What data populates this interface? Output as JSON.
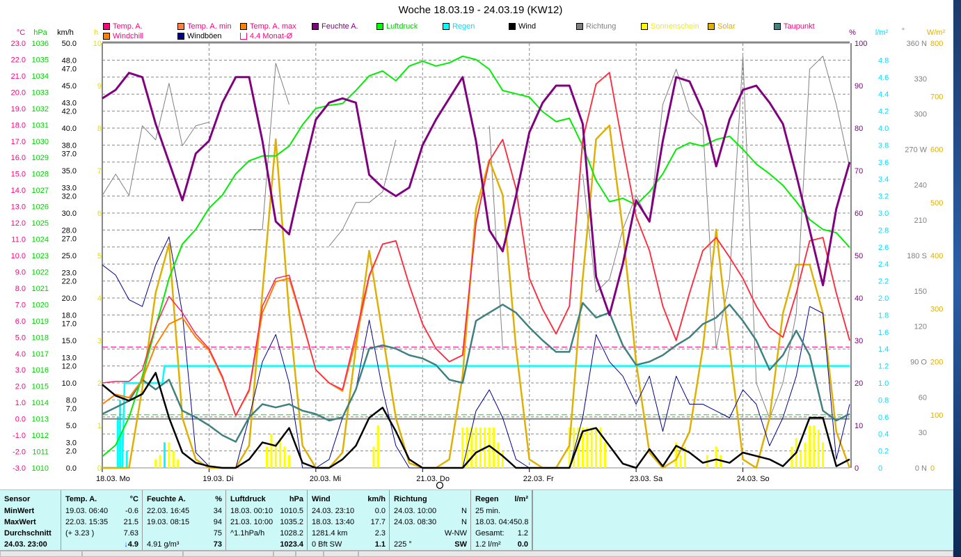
{
  "title": "Woche 18.03.19 - 24.03.19 (KW12)",
  "legend": [
    {
      "label": "Temp. A.",
      "swatch": "#ff0080",
      "text": "#ff0080"
    },
    {
      "label": "Temp. A. min",
      "swatch": "#ff8040",
      "text": "#ff0080"
    },
    {
      "label": "Temp. A. max",
      "swatch": "#ff8000",
      "text": "#ff0080"
    },
    {
      "label": "Feuchte A.",
      "swatch": "#800080",
      "text": "#800080"
    },
    {
      "label": "Luftdruck",
      "swatch": "#00ff00",
      "text": "#00d000"
    },
    {
      "label": "Regen",
      "swatch": "#00ffff",
      "text": "#00e0ff"
    },
    {
      "label": "Wind",
      "swatch": "#000000",
      "text": "#000000"
    },
    {
      "label": "Richtung",
      "swatch": "#808080",
      "text": "#808080"
    },
    {
      "label": "Sonnenschein",
      "swatch": "#ffff00",
      "text": "#f0f000"
    },
    {
      "label": "Solar",
      "swatch": "#e0b000",
      "text": "#e0b000"
    },
    {
      "label": "Taupunkt",
      "swatch": "#408080",
      "text": "#ff0080"
    },
    {
      "label": "Windchill",
      "swatch": "#ff8000",
      "text": "#ff0080"
    },
    {
      "label": "Windböen",
      "swatch": "#000080",
      "text": "#000000"
    },
    {
      "label": "4.4 Monat-Ø",
      "swatch": "hollow",
      "text": "#ff0080"
    }
  ],
  "chart_data": {
    "type": "line",
    "title": "Woche 18.03.19 - 24.03.19 (KW12)",
    "x_unit": "hours since 18.03. 00:00",
    "x_step_hours": 3,
    "xlim": [
      0,
      168
    ],
    "x_tick_labels": [
      "18.03.  Mo",
      "19.03.  Di",
      "20.03.  Mi",
      "21.03.  Do",
      "22.03.  Fr",
      "23.03.  Sa",
      "24.03.  So"
    ],
    "axes": {
      "temp": {
        "unit": "°C",
        "range": [
          -3,
          23
        ],
        "ticks": [
          "23.0",
          "22.0",
          "21.0",
          "20.0",
          "19.0",
          "18.0",
          "17.0",
          "16.0",
          "15.0",
          "14.0",
          "13.0",
          "12.0",
          "11.0",
          "10.0",
          "9.0",
          "8.0",
          "7.0",
          "6.0",
          "5.0",
          "4.0",
          "3.0",
          "2.0",
          "1.0",
          "0.0",
          "-1.0",
          "-2.0",
          "-3.0"
        ]
      },
      "pressure": {
        "unit": "hPa",
        "range": [
          1010,
          1036
        ],
        "ticks": [
          "1036",
          "1035",
          "1034",
          "1033",
          "1032",
          "1031",
          "1030",
          "1029",
          "1028",
          "1027",
          "1026",
          "1025",
          "1024",
          "1023",
          "1022",
          "1021",
          "1020",
          "1019",
          "1018",
          "1017",
          "1016",
          "1015",
          "1014",
          "1013",
          "1012",
          "1011",
          "1010"
        ]
      },
      "wind": {
        "unit": "km/h",
        "range": [
          0,
          50
        ],
        "ticks": [
          "50.0",
          "48.0",
          "47.0",
          "45.0",
          "43.0",
          "42.0",
          "40.0",
          "38.0",
          "37.0",
          "35.0",
          "33.0",
          "32.0",
          "30.0",
          "28.0",
          "27.0",
          "25.0",
          "23.0",
          "22.0",
          "20.0",
          "18.0",
          "17.0",
          "15.0",
          "13.0",
          "12.0",
          "10.0",
          "8.0",
          "7.0",
          "5.0",
          "3.0",
          "2.0",
          "0.0"
        ]
      },
      "sunshine": {
        "unit": "h",
        "range": [
          0,
          10
        ],
        "ticks": [
          "10",
          "9",
          "8",
          "7",
          "6",
          "5",
          "4",
          "3",
          "2",
          "1",
          "0"
        ]
      },
      "humidity": {
        "unit": "%",
        "range": [
          0,
          100
        ],
        "ticks": [
          "100",
          "90",
          "80",
          "70",
          "60",
          "50",
          "40",
          "30",
          "20",
          "10",
          "0"
        ]
      },
      "rain": {
        "unit": "l/m²",
        "range": [
          0,
          5
        ],
        "ticks": [
          "4.8",
          "4.6",
          "4.4",
          "4.2",
          "4.0",
          "3.8",
          "3.6",
          "3.4",
          "3.2",
          "3.0",
          "2.8",
          "2.6",
          "2.4",
          "2.2",
          "2.0",
          "1.8",
          "1.6",
          "1.4",
          "1.2",
          "1.0",
          "0.8",
          "0.6",
          "0.4",
          "0.2",
          "0"
        ]
      },
      "direction": {
        "unit": "°",
        "range": [
          0,
          360
        ],
        "ticks": [
          "360 N",
          "330",
          "300",
          "270 W",
          "240",
          "210",
          "180 S",
          "150",
          "120",
          "90 O",
          "60",
          "30",
          "0 N"
        ]
      },
      "solar": {
        "unit": "W/m²",
        "range": [
          0,
          800
        ],
        "ticks": [
          "800",
          "700",
          "600",
          "500",
          "400",
          "300",
          "200",
          "100",
          "0"
        ]
      }
    },
    "series": {
      "temperature": [
        2.2,
        2.3,
        2.3,
        3.0,
        5.7,
        7.5,
        6.5,
        5.2,
        4.3,
        2.6,
        0.2,
        1.8,
        6.9,
        8.6,
        8.8,
        6.0,
        3.0,
        2.2,
        1.8,
        5.2,
        8.8,
        10.7,
        10.9,
        8.2,
        5.8,
        4.3,
        3.5,
        3.9,
        12.0,
        15.8,
        17.1,
        14.1,
        8.6,
        6.7,
        5.2,
        6.9,
        17.1,
        20.5,
        21.2,
        16.7,
        12.4,
        10.3,
        6.9,
        4.8,
        7.7,
        10.3,
        11.1,
        9.9,
        8.6,
        6.9,
        5.6,
        5.0,
        7.7,
        10.9,
        11.1,
        7.7,
        4.8
      ],
      "windchill": [
        0.9,
        1.5,
        1.3,
        2.4,
        4.5,
        5.8,
        6.2,
        5.0,
        4.2,
        2.5,
        0.2,
        1.7,
        6.5,
        8.4,
        8.6,
        5.9,
        3.0,
        2.2,
        1.7,
        4.8,
        8.7,
        10.7,
        10.9,
        8.2,
        5.8,
        4.3,
        3.5,
        3.9,
        12.0,
        15.8,
        17.1,
        14.1,
        8.6,
        6.7,
        5.2,
        6.9,
        17.1,
        20.5,
        21.2,
        16.7,
        12.4,
        10.3,
        6.9,
        4.8,
        7.7,
        10.3,
        11.1,
        9.9,
        8.6,
        6.9,
        5.6,
        5.0,
        7.7,
        10.9,
        11.1,
        7.7,
        4.8
      ],
      "humidity": [
        87,
        89,
        93,
        92,
        81,
        72,
        63,
        74,
        77,
        86,
        92,
        92,
        77,
        58,
        55,
        69,
        82,
        86,
        87,
        86,
        69,
        66,
        64,
        66,
        76,
        82,
        87,
        92,
        77,
        56,
        51,
        64,
        79,
        86,
        90,
        90,
        81,
        45,
        36,
        48,
        63,
        58,
        77,
        92,
        91,
        84,
        71,
        82,
        89,
        90,
        86,
        81,
        69,
        56,
        43,
        61,
        72
      ],
      "pressure": [
        1010.7,
        1011.4,
        1013.1,
        1015.6,
        1018.6,
        1021.6,
        1023.7,
        1024.6,
        1025.9,
        1026.7,
        1028.0,
        1028.8,
        1029.1,
        1029.1,
        1029.7,
        1031.0,
        1032.0,
        1032.2,
        1032.3,
        1033.1,
        1034.0,
        1034.3,
        1033.7,
        1034.6,
        1034.9,
        1034.6,
        1034.8,
        1035.2,
        1035.0,
        1034.4,
        1033.1,
        1032.9,
        1032.7,
        1031.8,
        1031.2,
        1031.4,
        1029.7,
        1027.6,
        1026.3,
        1026.5,
        1026.1,
        1026.9,
        1028.0,
        1029.5,
        1029.9,
        1029.7,
        1030.1,
        1030.3,
        1029.5,
        1028.6,
        1028.0,
        1027.3,
        1026.3,
        1025.2,
        1024.6,
        1024.4,
        1023.5
      ],
      "dewpoint": [
        0.3,
        0.7,
        1.1,
        2.4,
        1.8,
        2.4,
        0.5,
        0.1,
        -0.4,
        -1.0,
        -1.4,
        0.1,
        0.9,
        0.7,
        0.9,
        0.5,
        0.3,
        -0.1,
        0.1,
        1.8,
        4.3,
        4.5,
        4.3,
        3.9,
        3.7,
        3.3,
        2.4,
        2.2,
        6.0,
        6.5,
        7.0,
        6.5,
        5.6,
        4.8,
        4.1,
        4.1,
        7.1,
        6.2,
        6.5,
        4.5,
        3.3,
        3.5,
        3.9,
        4.5,
        5.0,
        5.8,
        6.2,
        7.0,
        6.0,
        4.8,
        3.0,
        3.9,
        5.4,
        3.9,
        0.5,
        -0.1,
        0.3
      ],
      "wind": [
        9.8,
        8.5,
        7.9,
        8.7,
        11.2,
        5.9,
        1.8,
        0.6,
        0.2,
        0,
        0,
        1.0,
        3.0,
        2.6,
        4.7,
        0.6,
        0,
        0,
        1.0,
        2.6,
        5.9,
        7.1,
        4.3,
        1.0,
        0,
        0,
        0,
        0,
        1.8,
        2.6,
        1.4,
        0,
        0,
        0,
        0,
        0,
        4.3,
        4.7,
        2.6,
        0.5,
        0,
        2.2,
        0.2,
        2.6,
        1.8,
        0.6,
        1.0,
        0.6,
        1.8,
        1.4,
        1.0,
        0.2,
        1.8,
        5.9,
        5.9,
        0.2,
        1.0
      ],
      "gusts": [
        23.9,
        22.7,
        19.8,
        19.0,
        23.9,
        27.2,
        18.2,
        1.8,
        0.2,
        0,
        0,
        5.9,
        12.5,
        15.7,
        10.0,
        0,
        0,
        1.0,
        5.9,
        9.2,
        17.4,
        9.2,
        2.6,
        0,
        0,
        0,
        0,
        0,
        6.7,
        9.2,
        5.9,
        1.0,
        0,
        0,
        0,
        0,
        5.9,
        15.7,
        12.5,
        10.8,
        7.5,
        10.8,
        4.3,
        10.8,
        7.5,
        7.5,
        6.7,
        5.9,
        9.2,
        7.5,
        2.6,
        5.9,
        10.8,
        19.0,
        18.2,
        1.0,
        7.5
      ],
      "direction": [
        231,
        249,
        231,
        290,
        278,
        326,
        273,
        290,
        293,
        null,
        null,
        202,
        202,
        343,
        308,
        null,
        null,
        188,
        202,
        225,
        225,
        234,
        278,
        null,
        null,
        null,
        null,
        null,
        null,
        290,
        101,
        null,
        null,
        42,
        null,
        null,
        249,
        149,
        160,
        202,
        231,
        208,
        308,
        338,
        302,
        290,
        101,
        160,
        349,
        72,
        42,
        72,
        131,
        338,
        349,
        308,
        255
      ],
      "solar": [
        0,
        0,
        0,
        150,
        330,
        422,
        94,
        16,
        0,
        0,
        0,
        42,
        330,
        619,
        291,
        42,
        0,
        0,
        29,
        226,
        409,
        252,
        94,
        9,
        0,
        0,
        16,
        173,
        488,
        580,
        514,
        226,
        16,
        0,
        0,
        42,
        357,
        619,
        645,
        449,
        199,
        29,
        0,
        16,
        68,
        226,
        449,
        226,
        16,
        0,
        94,
        291,
        383,
        383,
        291,
        68,
        0
      ],
      "sunshine_hourly": [
        [
          12,
          0.2
        ],
        [
          13,
          0.3
        ],
        [
          14,
          0.4
        ],
        [
          15,
          0.6
        ],
        [
          16,
          0.4
        ],
        [
          17,
          0.2
        ],
        [
          37,
          0.5
        ],
        [
          38,
          0.8
        ],
        [
          39,
          0.6
        ],
        [
          40,
          0.7
        ],
        [
          41,
          0.5
        ],
        [
          42,
          0.3
        ],
        [
          61,
          0.5
        ],
        [
          62,
          1.0
        ],
        [
          81,
          0.95
        ],
        [
          82,
          0.95
        ],
        [
          83,
          0.95
        ],
        [
          84,
          0.95
        ],
        [
          85,
          0.95
        ],
        [
          86,
          0.95
        ],
        [
          87,
          0.95
        ],
        [
          88,
          0.95
        ],
        [
          89,
          0.6
        ],
        [
          90,
          0.4
        ],
        [
          105,
          0.95
        ],
        [
          106,
          0.95
        ],
        [
          107,
          0.95
        ],
        [
          108,
          0.95
        ],
        [
          109,
          0.95
        ],
        [
          110,
          0.95
        ],
        [
          111,
          0.95
        ],
        [
          112,
          0.95
        ],
        [
          113,
          0.6
        ],
        [
          129,
          0.6
        ],
        [
          130,
          0.3
        ],
        [
          131,
          0.5
        ],
        [
          136,
          0.3
        ],
        [
          138,
          0.5
        ],
        [
          139,
          0.3
        ],
        [
          155,
          0.5
        ],
        [
          156,
          0.7
        ],
        [
          157,
          0.4
        ],
        [
          158,
          0.6
        ],
        [
          159,
          1.0
        ],
        [
          160,
          1.0
        ],
        [
          161,
          0.9
        ],
        [
          162,
          0.6
        ]
      ],
      "rain_bars": [
        [
          3.5,
          0.6
        ],
        [
          4,
          0.8
        ],
        [
          4.5,
          0.4
        ],
        [
          5.5,
          0.2
        ],
        [
          14,
          0.3
        ]
      ],
      "rain_cumulative": [
        [
          0,
          0
        ],
        [
          4.5,
          0
        ],
        [
          5,
          1.0
        ],
        [
          13.5,
          1.0
        ],
        [
          14,
          1.2
        ],
        [
          168,
          1.2
        ]
      ]
    },
    "reference_lines": {
      "monthly_avg_temp": 4.4,
      "standard_pressure": 1013.25,
      "zero_temp": 0
    }
  },
  "table": {
    "columns": [
      {
        "head": "Sensor",
        "unit": "",
        "rows": [
          [
            "MinWert",
            ""
          ],
          [
            "MaxWert",
            ""
          ],
          [
            "Durchschnitt",
            ""
          ],
          [
            "24.03. 23:00",
            ""
          ]
        ],
        "boldlast": true
      },
      {
        "head": "Temp. A.",
        "unit": "°C",
        "rows": [
          [
            "19.03.  06:40",
            "-0.6"
          ],
          [
            "22.03.  15:35",
            "21.5"
          ],
          [
            "(+ 3.23 )",
            "7.63"
          ],
          [
            "",
            "↓4.9"
          ]
        ]
      },
      {
        "head": "Feuchte A.",
        "unit": "%",
        "rows": [
          [
            "22.03.  16:45",
            "34"
          ],
          [
            "19.03.  08:15",
            "94"
          ],
          [
            "",
            "75"
          ],
          [
            "4.91 g/m³",
            "73"
          ]
        ]
      },
      {
        "head": "Luftdruck",
        "unit": "hPa",
        "rows": [
          [
            "18.03.  00:10",
            "1010.5"
          ],
          [
            "21.03.  10:00",
            "1035.2"
          ],
          [
            "^1.1hPa/h",
            "1028.2"
          ],
          [
            "",
            "1023.4"
          ]
        ]
      },
      {
        "head": "Wind",
        "unit": "km/h",
        "rows": [
          [
            "24.03.  23:10",
            "0.0"
          ],
          [
            "18.03.  13:40",
            "17.7"
          ],
          [
            "1281.4 km",
            "2.3"
          ],
          [
            "0 Bft SW",
            "1.1"
          ]
        ]
      },
      {
        "head": "Richtung",
        "unit": "",
        "rows": [
          [
            "24.03.  10:00",
            "N"
          ],
          [
            "24.03.  08:30",
            "N"
          ],
          [
            "",
            "W-NW"
          ],
          [
            "225 °",
            "SW"
          ]
        ]
      },
      {
        "head": "Regen",
        "unit": "l/m²",
        "rows": [
          [
            "25 min.",
            ""
          ],
          [
            "18.03.  04:45",
            "0.8"
          ],
          [
            "Gesamt:",
            "1.2"
          ],
          [
            "1.2 l/m²",
            "0.0"
          ]
        ]
      }
    ]
  }
}
